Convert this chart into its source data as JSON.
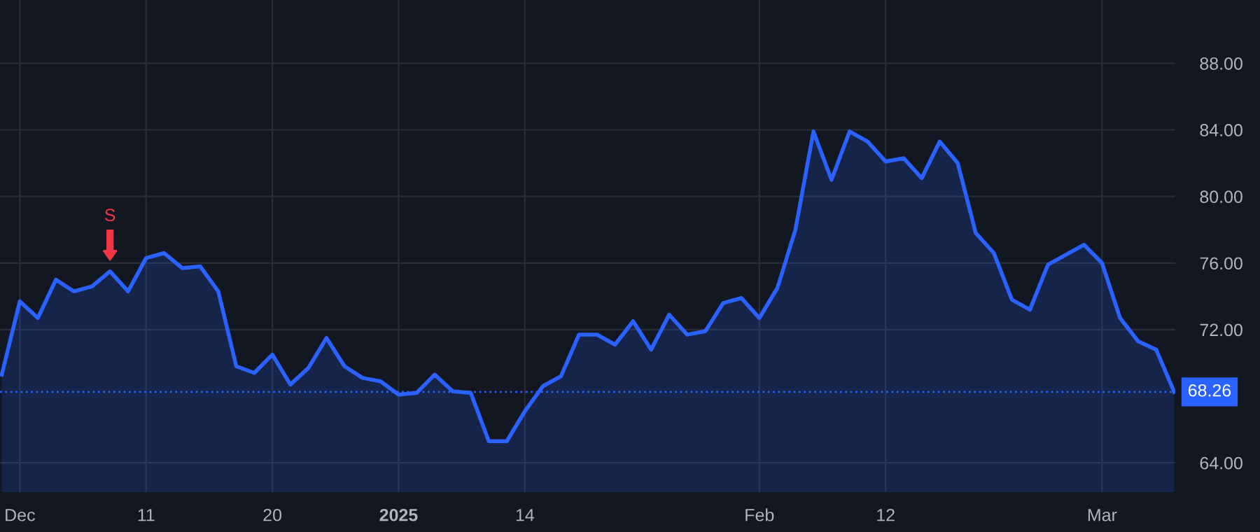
{
  "chart_data": {
    "type": "area",
    "categories": [
      null,
      "Dec",
      null,
      null,
      null,
      null,
      null,
      null,
      "11",
      null,
      null,
      null,
      null,
      null,
      null,
      "20",
      null,
      null,
      null,
      null,
      null,
      null,
      "2025",
      null,
      null,
      null,
      null,
      null,
      null,
      "14",
      null,
      null,
      null,
      null,
      null,
      null,
      null,
      null,
      null,
      null,
      null,
      null,
      "Feb",
      null,
      null,
      null,
      null,
      null,
      null,
      "12",
      null,
      null,
      null,
      null,
      null,
      null,
      null,
      null,
      null,
      null,
      null,
      "Mar",
      null,
      null,
      null,
      null
    ],
    "series": [
      {
        "color": "#2962ff",
        "values": [
          69.3,
          73.7,
          72.7,
          75.0,
          74.3,
          74.6,
          75.5,
          74.3,
          76.3,
          76.6,
          75.7,
          75.8,
          74.3,
          69.8,
          69.4,
          70.5,
          68.7,
          69.7,
          71.5,
          69.8,
          69.1,
          68.9,
          68.1,
          68.2,
          69.3,
          68.3,
          68.2,
          65.3,
          65.3,
          67.1,
          68.6,
          69.2,
          71.7,
          71.7,
          71.1,
          72.5,
          70.8,
          72.9,
          71.7,
          71.9,
          73.6,
          73.9,
          72.7,
          74.5,
          78.0,
          83.9,
          81.0,
          83.9,
          83.3,
          82.1,
          82.3,
          81.1,
          83.3,
          82.0,
          77.8,
          76.6,
          73.8,
          73.2,
          75.9,
          76.5,
          77.1,
          76.0,
          72.7,
          71.3,
          70.8,
          68.26
        ]
      }
    ],
    "ylim": [
      62.2,
      91.8
    ],
    "yticks": [
      {
        "value": 64,
        "label": "64.00"
      },
      {
        "value": 72,
        "label": "72.00"
      },
      {
        "value": 76,
        "label": "76.00"
      },
      {
        "value": 80,
        "label": "80.00"
      },
      {
        "value": 84,
        "label": "84.00"
      },
      {
        "value": 88,
        "label": "88.00"
      }
    ],
    "ref_lines": [
      {
        "axis": "y",
        "value": 68.26,
        "label": "68.26",
        "color": "#2962ff",
        "line_style": "dotted"
      }
    ],
    "annotations": [
      {
        "text": "S",
        "y": 75.5
      }
    ],
    "grid": true,
    "legend": false,
    "line_style": "solid",
    "marker": "none"
  }
}
